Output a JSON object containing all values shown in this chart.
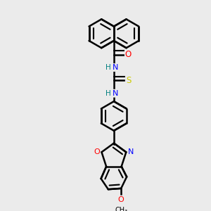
{
  "bg_color": "#ebebeb",
  "bond_color": "#000000",
  "bond_width": 1.8,
  "atom_colors": {
    "N": "#0000ff",
    "O": "#ff0000",
    "S": "#cccc00",
    "C": "#000000",
    "H": "#008080"
  },
  "font_size": 7.5
}
